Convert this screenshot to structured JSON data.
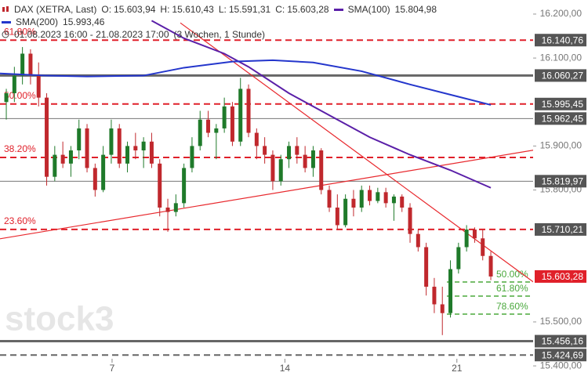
{
  "chart_data": {
    "type": "candlestick",
    "header": {
      "title": "DAX (XETRA, Last)",
      "ohlc": [
        {
          "name": "O:",
          "value": "15.603,94"
        },
        {
          "name": "H:",
          "value": "15.610,43"
        },
        {
          "name": "L:",
          "value": "15.591,31"
        },
        {
          "name": "C:",
          "value": "15.603,28"
        }
      ],
      "period": "01.08.2023 16:00 - 21.08.2023 17:00",
      "span": "(3 Wochen, 1 Stunde)"
    },
    "watermark": "stock3",
    "open": [
      16000,
      16020,
      16060,
      16110,
      16060,
      16010,
      15830,
      15880,
      15860,
      15890,
      15940,
      15850,
      15800,
      15880,
      15940,
      15860,
      15900,
      15890,
      15910,
      15860,
      15760,
      15750,
      15770,
      15850,
      15900,
      15960,
      15930,
      15940,
      15990,
      15910,
      16030,
      15930,
      15900,
      15880,
      15820,
      15870,
      15900,
      15880,
      15850,
      15890,
      15800,
      15760,
      15720,
      15780,
      15760,
      15800,
      15775,
      15795,
      15770,
      15785,
      15760,
      15700,
      15670,
      15580,
      15540,
      15520,
      15620,
      15670,
      15710,
      15690,
      15650
    ],
    "high": [
      16030,
      16080,
      16125,
      16120,
      16090,
      16020,
      15900,
      15910,
      15900,
      15960,
      15950,
      15860,
      15900,
      15960,
      15950,
      15910,
      15930,
      15920,
      15930,
      15870,
      15780,
      15790,
      15860,
      15920,
      15980,
      15980,
      15950,
      16010,
      16000,
      16055,
      16040,
      15940,
      15920,
      15890,
      15880,
      15910,
      15920,
      15900,
      15900,
      15895,
      15810,
      15790,
      15790,
      15800,
      15810,
      15810,
      15805,
      15805,
      15790,
      15790,
      15770,
      15710,
      15680,
      15600,
      15580,
      15640,
      15680,
      15720,
      15715,
      15710,
      15660
    ],
    "low": [
      15960,
      16000,
      16040,
      16040,
      15990,
      15810,
      15820,
      15850,
      15830,
      15870,
      15840,
      15785,
      15795,
      15860,
      15850,
      15840,
      15870,
      15850,
      15850,
      15740,
      15705,
      15740,
      15760,
      15840,
      15890,
      15920,
      15870,
      15930,
      15900,
      15900,
      15920,
      15870,
      15860,
      15800,
      15810,
      15850,
      15860,
      15840,
      15830,
      15790,
      15750,
      15710,
      15715,
      15740,
      15750,
      15765,
      15770,
      15760,
      15730,
      15750,
      15680,
      15660,
      15560,
      15520,
      15470,
      15510,
      15610,
      15660,
      15680,
      15640,
      15595
    ],
    "close": [
      16020,
      16060,
      16110,
      16060,
      16010,
      15830,
      15880,
      15860,
      15890,
      15940,
      15850,
      15800,
      15880,
      15940,
      15860,
      15900,
      15890,
      15910,
      15860,
      15760,
      15750,
      15770,
      15850,
      15900,
      15960,
      15930,
      15940,
      15990,
      15910,
      16030,
      15930,
      15900,
      15880,
      15820,
      15870,
      15900,
      15880,
      15850,
      15890,
      15800,
      15760,
      15720,
      15780,
      15760,
      15800,
      15775,
      15795,
      15770,
      15785,
      15760,
      15700,
      15670,
      15580,
      15540,
      15520,
      15620,
      15670,
      15710,
      15690,
      15650,
      15603.28
    ],
    "up_color": "#1f7a2a",
    "down_color": "#c0282d",
    "overlays": [
      {
        "name": "SMA(100)",
        "value_label": "15.804,98",
        "color": "#5a1fa8",
        "x": [
          18,
          22,
          27,
          30,
          35,
          40,
          45,
          50,
          55,
          60
        ],
        "values": [
          16185,
          16145,
          16110,
          16080,
          16020,
          15970,
          15920,
          15880,
          15845,
          15804.98
        ]
      },
      {
        "name": "SMA(200)",
        "value_label": "15.993,46",
        "color": "#2436cc",
        "x": [
          -0.78,
          5,
          10,
          17,
          22,
          28,
          33,
          38,
          44,
          50,
          56,
          60
        ],
        "values": [
          16065,
          16060,
          16058,
          16060,
          16078,
          16092,
          16095,
          16090,
          16070,
          16040,
          16012,
          15993.46
        ]
      }
    ],
    "trendlines": [
      {
        "color": "#e8282d",
        "x": [
          21.55,
          72
        ],
        "values": [
          16180,
          15500
        ]
      },
      {
        "color": "#e8282d",
        "x": [
          -0.78,
          72
        ],
        "values": [
          15689,
          15911
        ]
      }
    ],
    "levels": [
      {
        "value": 16140.76,
        "label": "16.140,76",
        "style": "dashed-red",
        "fib": "61.80%"
      },
      {
        "value": 16060.27,
        "label": "16.060,27",
        "style": "solid-thick"
      },
      {
        "value": 15995.45,
        "label": "15.995,45",
        "style": "dashed-red",
        "fib": "50.00%"
      },
      {
        "value": 15962.45,
        "label": "15.962,45",
        "style": "solid-thin"
      },
      {
        "value": 15874,
        "style": "dashed-red",
        "fib": "38.20%"
      },
      {
        "value": 15819.97,
        "label": "15.819,97",
        "style": "solid-thin"
      },
      {
        "value": 15710.21,
        "label": "15.710,21",
        "style": "dashed-red",
        "fib": "23.60%"
      },
      {
        "value": 15456.16,
        "label": "15.456,16",
        "style": "solid-thick"
      },
      {
        "value": 15424.69,
        "label": "15.424,69",
        "style": "dashed-gray"
      }
    ],
    "fib_green": [
      {
        "value": 15590.75,
        "label": "50.00%"
      },
      {
        "value": 15558.7,
        "label": "61.80%"
      },
      {
        "value": 15517.7,
        "label": "78.60%"
      }
    ],
    "current": {
      "value": 15603.28,
      "label": "15.603,28"
    },
    "xlim": [
      -0.78,
      65.24
    ],
    "xticks": [
      {
        "value": 13.1,
        "label": "7"
      },
      {
        "value": 34.5,
        "label": "14"
      },
      {
        "value": 55.8,
        "label": "21"
      }
    ],
    "ylim": [
      15377,
      16232
    ],
    "yticks": [
      {
        "value": 16200,
        "label": "16.200,00"
      },
      {
        "value": 16100,
        "label": "16.100,00"
      },
      {
        "value": 15900,
        "label": "15.900,00"
      },
      {
        "value": 15800,
        "label": "15.800,00"
      },
      {
        "value": 15500,
        "label": "15.500,00"
      },
      {
        "value": 15400,
        "label": "15.400,00"
      }
    ]
  }
}
